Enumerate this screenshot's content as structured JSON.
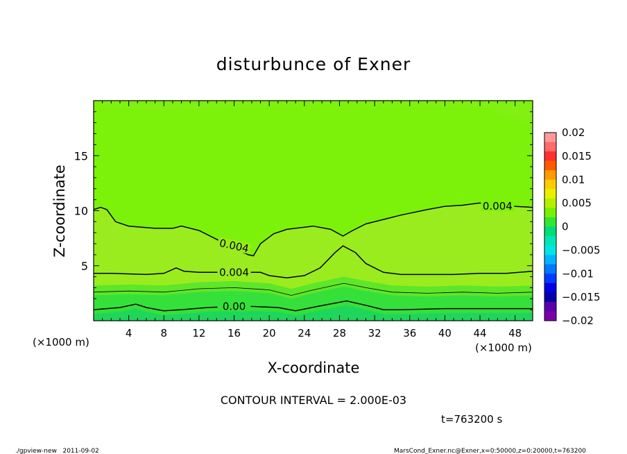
{
  "chart_data": {
    "type": "contour",
    "title": "disturbunce of Exner",
    "xlabel": "X-coordinate",
    "ylabel": "Z-coordinate",
    "x_unit_left": "(×1000 m)",
    "x_unit_right": "(×1000 m)",
    "xlim": [
      0,
      50
    ],
    "ylim": [
      0,
      20
    ],
    "x_ticks": [
      4,
      8,
      12,
      16,
      20,
      24,
      28,
      32,
      36,
      40,
      44,
      48
    ],
    "y_ticks": [
      5,
      10,
      15
    ],
    "colorbar": {
      "ticks": [
        0.02,
        0.015,
        0.01,
        0.005,
        0,
        -0.005,
        -0.01,
        -0.015,
        -0.02
      ],
      "tick_labels": [
        "0.02",
        "0.015",
        "0.01",
        "0.005",
        "0",
        "−0.005",
        "−0.01",
        "−0.015",
        "−0.02"
      ],
      "range": [
        -0.02,
        0.02
      ],
      "colors_top_to_bottom": [
        "#ff9a9a",
        "#ff6a6a",
        "#ff3030",
        "#ff5a00",
        "#ff9a00",
        "#ffcc00",
        "#e8f000",
        "#b4f000",
        "#78f000",
        "#32e632",
        "#00dc78",
        "#00e6b4",
        "#00e6e6",
        "#00b4ff",
        "#0078ff",
        "#003cff",
        "#0000e6",
        "#0000aa",
        "#5a00aa",
        "#7a00aa"
      ]
    },
    "contour_labels": [
      {
        "text": "0.004",
        "x": 46.0,
        "z": 10.4
      },
      {
        "text": "0.004",
        "x": 16.0,
        "z": 6.8
      },
      {
        "text": "0.004",
        "x": 16.0,
        "z": 4.4
      },
      {
        "text": "0.00",
        "x": 16.0,
        "z": 1.3
      }
    ],
    "contours": [
      {
        "level": 0.004,
        "points": [
          [
            0,
            10.1
          ],
          [
            0.8,
            10.3
          ],
          [
            1.5,
            10.1
          ],
          [
            2.5,
            9.0
          ],
          [
            4,
            8.6
          ],
          [
            7,
            8.4
          ],
          [
            9,
            8.4
          ],
          [
            10,
            8.6
          ],
          [
            12,
            8.2
          ],
          [
            14,
            7.4
          ],
          [
            16,
            6.6
          ],
          [
            17.6,
            6.0
          ],
          [
            18.2,
            5.9
          ],
          [
            19,
            7.0
          ],
          [
            20.5,
            7.9
          ],
          [
            22,
            8.3
          ],
          [
            25,
            8.6
          ],
          [
            27,
            8.3
          ],
          [
            28.4,
            7.7
          ],
          [
            29.5,
            8.2
          ],
          [
            31,
            8.8
          ],
          [
            33.5,
            9.3
          ],
          [
            35,
            9.6
          ],
          [
            38,
            10.1
          ],
          [
            40,
            10.4
          ],
          [
            42,
            10.5
          ],
          [
            44,
            10.7
          ],
          [
            45,
            10.5
          ],
          [
            48,
            10.4
          ],
          [
            50,
            10.3
          ]
        ]
      },
      {
        "level": 0.004,
        "points": [
          [
            0,
            4.3
          ],
          [
            2,
            4.3
          ],
          [
            6,
            4.2
          ],
          [
            8,
            4.3
          ],
          [
            9.4,
            4.8
          ],
          [
            10.3,
            4.5
          ],
          [
            12,
            4.4
          ],
          [
            16,
            4.4
          ],
          [
            19,
            4.4
          ],
          [
            20,
            4.1
          ],
          [
            22,
            3.9
          ],
          [
            24,
            4.1
          ],
          [
            25.8,
            4.8
          ],
          [
            27.5,
            6.2
          ],
          [
            28.4,
            6.8
          ],
          [
            29.8,
            6.2
          ],
          [
            31,
            5.2
          ],
          [
            33,
            4.4
          ],
          [
            35,
            4.2
          ],
          [
            38,
            4.2
          ],
          [
            41,
            4.2
          ],
          [
            44,
            4.3
          ],
          [
            47,
            4.3
          ],
          [
            50,
            4.5
          ]
        ]
      },
      {
        "level": 0.002,
        "points": [
          [
            0,
            2.6
          ],
          [
            4,
            2.7
          ],
          [
            8,
            2.6
          ],
          [
            12,
            2.9
          ],
          [
            16,
            3.0
          ],
          [
            20,
            2.8
          ],
          [
            22.5,
            2.3
          ],
          [
            25,
            2.8
          ],
          [
            28.5,
            3.4
          ],
          [
            31,
            3.0
          ],
          [
            34,
            2.6
          ],
          [
            38,
            2.5
          ],
          [
            42,
            2.6
          ],
          [
            46,
            2.5
          ],
          [
            50,
            2.6
          ]
        ]
      },
      {
        "level": 0.0,
        "points": [
          [
            0,
            1.0
          ],
          [
            3,
            1.2
          ],
          [
            4.8,
            1.5
          ],
          [
            6,
            1.2
          ],
          [
            8,
            0.9
          ],
          [
            10,
            1.0
          ],
          [
            13,
            1.2
          ],
          [
            16,
            1.3
          ],
          [
            18,
            1.3
          ],
          [
            21,
            1.2
          ],
          [
            23,
            0.9
          ],
          [
            25.5,
            1.3
          ],
          [
            28.8,
            1.8
          ],
          [
            31,
            1.4
          ],
          [
            33,
            1.0
          ],
          [
            35,
            1.0
          ],
          [
            40,
            1.1
          ],
          [
            45,
            1.1
          ],
          [
            50,
            1.1
          ]
        ]
      }
    ],
    "contour_interval_text": "CONTOUR INTERVAL = 2.000E-03",
    "time_text": "t=763200 s"
  },
  "footer": {
    "left": "./gpview-new   2011-09-02",
    "right": "MarsCond_Exner.nc@Exner,x=0:50000,z=0:20000,t=763200"
  }
}
